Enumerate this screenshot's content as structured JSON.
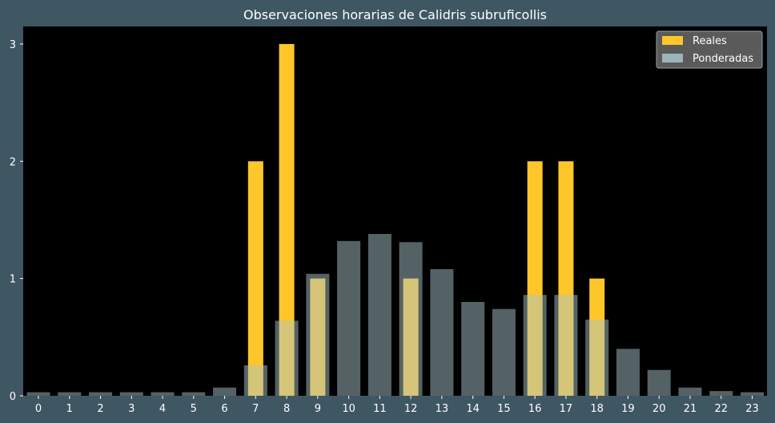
{
  "chart_data": {
    "type": "bar",
    "title": "Observaciones horarias de Calidris subruficollis",
    "xlabel": "",
    "ylabel": "",
    "categories": [
      "0",
      "1",
      "2",
      "3",
      "4",
      "5",
      "6",
      "7",
      "8",
      "9",
      "10",
      "11",
      "12",
      "13",
      "14",
      "15",
      "16",
      "17",
      "18",
      "19",
      "20",
      "21",
      "22",
      "23"
    ],
    "ylim": [
      0,
      3.15
    ],
    "yticks": [
      0,
      1,
      2,
      3
    ],
    "grid": false,
    "legend_position": "top-right",
    "series": [
      {
        "name": "Reales",
        "color": "#ffc629",
        "values": [
          0,
          0,
          0,
          0,
          0,
          0,
          0,
          2,
          3,
          1,
          0,
          0,
          1,
          0,
          0,
          0,
          2,
          2,
          1,
          0,
          0,
          0,
          0,
          0
        ]
      },
      {
        "name": "Ponderadas",
        "color": "#a9c4c9",
        "opacity": 0.5,
        "values": [
          0.03,
          0.03,
          0.03,
          0.03,
          0.03,
          0.03,
          0.07,
          0.26,
          0.64,
          1.04,
          1.32,
          1.38,
          1.31,
          1.08,
          0.8,
          0.74,
          0.86,
          0.86,
          0.65,
          0.4,
          0.22,
          0.07,
          0.04,
          0.03
        ]
      }
    ],
    "colors": {
      "figure_background": "#3f5663",
      "plot_background": "#000000",
      "text": "#ffffff",
      "legend_background": "#5a5a5a"
    }
  }
}
